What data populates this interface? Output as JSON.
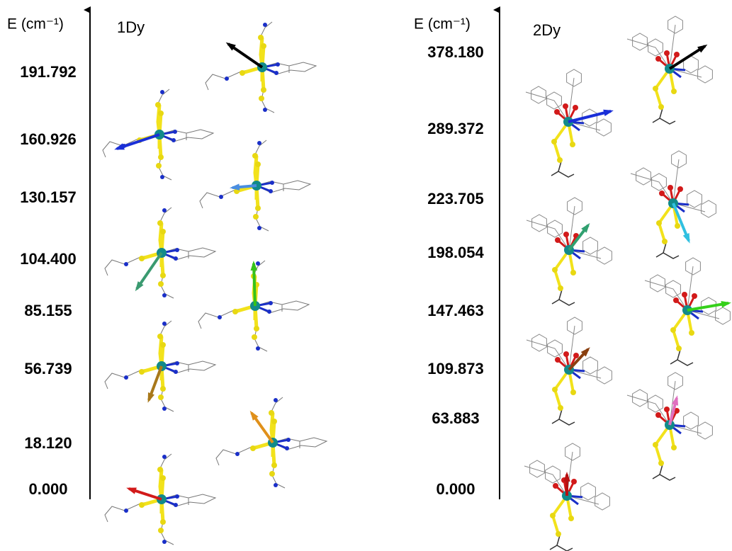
{
  "panels": [
    {
      "axis_label": "E (cm⁻¹)",
      "label": "1Dy",
      "levels": [
        "191.792",
        "160.926",
        "130.157",
        "104.400",
        "85.155",
        "56.739",
        "18.120",
        "0.000"
      ]
    },
    {
      "axis_label": "E (cm⁻¹)",
      "label": "2Dy",
      "levels": [
        "378.180",
        "289.372",
        "223.705",
        "198.054",
        "147.463",
        "109.873",
        "63.883",
        "0.000"
      ]
    }
  ]
}
